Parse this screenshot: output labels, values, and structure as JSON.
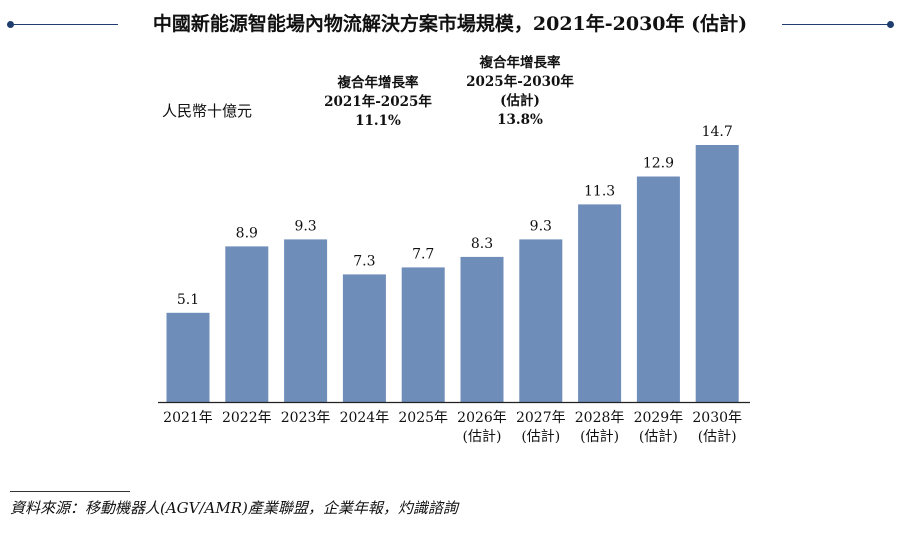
{
  "title": "中國新能源智能場內物流解決方案市場規模，2021年-2030年 (估計)",
  "unit_label": "人民幣十億元",
  "cagr_notes": [
    {
      "lines": [
        "複合年增長率",
        "2021年-2025年",
        "11.1%"
      ]
    },
    {
      "lines": [
        "複合年增長率",
        "2025年-2030年",
        "(估計)",
        "13.8%"
      ]
    }
  ],
  "chart_data": {
    "type": "bar",
    "categories": [
      [
        "2021年"
      ],
      [
        "2022年"
      ],
      [
        "2023年"
      ],
      [
        "2024年"
      ],
      [
        "2025年"
      ],
      [
        "2026年",
        "(估計)"
      ],
      [
        "2027年",
        "(估計)"
      ],
      [
        "2028年",
        "(估計)"
      ],
      [
        "2029年",
        "(估計)"
      ],
      [
        "2030年",
        "(估計)"
      ]
    ],
    "values": [
      5.1,
      8.9,
      9.3,
      7.3,
      7.7,
      8.3,
      9.3,
      11.3,
      12.9,
      14.7
    ],
    "value_labels": [
      "5.1",
      "8.9",
      "9.3",
      "7.3",
      "7.7",
      "8.3",
      "9.3",
      "11.3",
      "12.9",
      "14.7"
    ],
    "ylabel": "人民幣十億元",
    "ylim": [
      0,
      14.7
    ],
    "grid": false,
    "bar_color": "#6f8db9",
    "axis_color": "#222222"
  },
  "source": "資料來源：移動機器人(AGV/AMR)產業聯盟，企業年報，灼識諮詢",
  "colors": {
    "accent_line": "#1f3d6e"
  }
}
